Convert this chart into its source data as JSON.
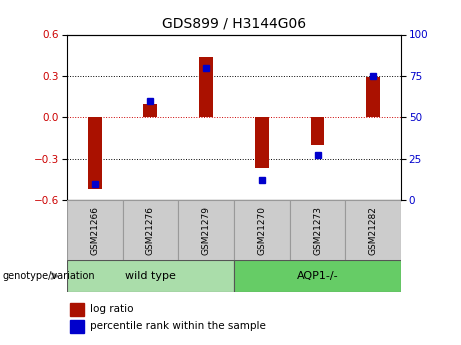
{
  "title": "GDS899 / H3144G06",
  "samples": [
    "GSM21266",
    "GSM21276",
    "GSM21279",
    "GSM21270",
    "GSM21273",
    "GSM21282"
  ],
  "log_ratio": [
    -0.52,
    0.1,
    0.44,
    -0.37,
    -0.2,
    0.29
  ],
  "percentile": [
    10,
    60,
    80,
    12,
    27,
    75
  ],
  "groups": [
    {
      "label": "wild type",
      "color": "#90EE90"
    },
    {
      "label": "AQP1-/-",
      "color": "#66CC66"
    }
  ],
  "ylim_left": [
    -0.6,
    0.6
  ],
  "ylim_right": [
    0,
    100
  ],
  "yticks_left": [
    -0.6,
    -0.3,
    0,
    0.3,
    0.6
  ],
  "yticks_right": [
    0,
    25,
    50,
    75,
    100
  ],
  "bar_color": "#AA1100",
  "point_color": "#0000CC",
  "bar_width": 0.25,
  "legend_bar_label": "log ratio",
  "legend_point_label": "percentile rank within the sample",
  "genotype_label": "genotype/variation",
  "sample_box_color": "#CCCCCC",
  "zero_line_color": "#CC0000",
  "title_fontsize": 10,
  "tick_fontsize": 7.5
}
